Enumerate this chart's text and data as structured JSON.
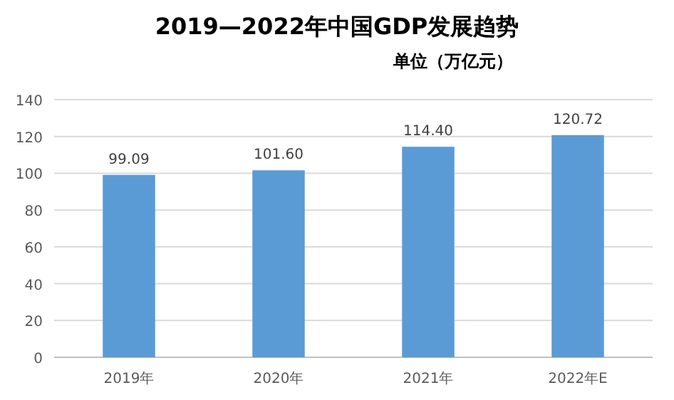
{
  "chart_data": {
    "type": "bar",
    "title": "2019—2022年中国GDP发展趋势",
    "subtitle": "单位（万亿元）",
    "categories": [
      "2019年",
      "2020年",
      "2021年",
      "2022年E"
    ],
    "values": [
      99.09,
      101.6,
      114.4,
      120.72
    ],
    "value_labels": [
      "99.09",
      "101.60",
      "114.40",
      "120.72"
    ],
    "color": "#5b9bd5",
    "ylim": [
      0,
      140
    ],
    "yticks": [
      0,
      20,
      40,
      60,
      80,
      100,
      120,
      140
    ],
    "grid": "y"
  }
}
